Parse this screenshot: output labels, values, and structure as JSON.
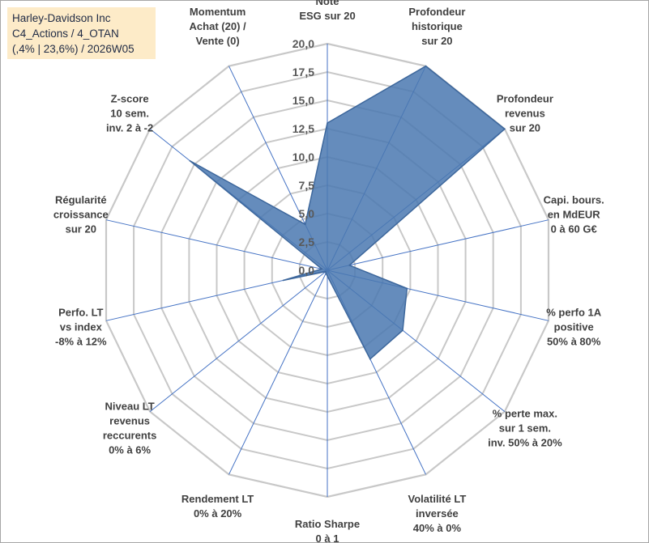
{
  "title_lines": [
    "Harley-Davidson Inc",
    "C4_Actions / 4_OTAN",
    "(,4% | 23,6%) / 2026W05"
  ],
  "colors": {
    "fill": "#4a78b0",
    "grid": "#c8c8c8",
    "spoke": "#4472c4",
    "title_bg": "#fdebc8"
  },
  "chart_data": {
    "type": "radar",
    "title": "",
    "range": [
      0,
      20
    ],
    "tick_step": 2.5,
    "tick_labels": [
      "0,0",
      "2,5",
      "5,0",
      "7,5",
      "10,0",
      "12,5",
      "15,0",
      "17,5",
      "20,0"
    ],
    "grid": true,
    "axes": [
      {
        "label": [
          "Note",
          "ESG sur 20"
        ],
        "value": 13
      },
      {
        "label": [
          "Profondeur",
          "historique",
          "sur 20"
        ],
        "value": 20
      },
      {
        "label": [
          "Profondeur",
          "revenus",
          "sur 20"
        ],
        "value": 20
      },
      {
        "label": [
          "Capi. bours.",
          "en MdEUR",
          "0 à 60 G€"
        ],
        "value": 2
      },
      {
        "label": [
          "% perfo 1A",
          "positive",
          "50% à 80%"
        ],
        "value": 7.2
      },
      {
        "label": [
          "% perte max.",
          "sur 1 sem.",
          "inv. 50% à 20%"
        ],
        "value": 8.5
      },
      {
        "label": [
          "Volatilité LT",
          "inversée",
          "40% à 0%"
        ],
        "value": 8.7
      },
      {
        "label": [
          "Ratio Sharpe",
          "0 à 1"
        ],
        "value": 0.5
      },
      {
        "label": [
          "Rendement LT",
          "0% à 20%"
        ],
        "value": 0.3
      },
      {
        "label": [
          "Niveau LT",
          "revenus",
          "reccurents",
          "0% à 6%"
        ],
        "value": 0.2
      },
      {
        "label": [
          "Perfo. LT",
          "vs index",
          "-8% à 12%"
        ],
        "value": 4
      },
      {
        "label": [
          "Régularité",
          "croissance",
          "sur 20"
        ],
        "value": 0.5
      },
      {
        "label": [
          "Z-score",
          "10 sem.",
          "inv. 2 à -2"
        ],
        "value": 15.5
      },
      {
        "label": [
          "Momentum",
          "Achat (20) /",
          "Vente (0)"
        ],
        "value": 4.5
      }
    ]
  }
}
